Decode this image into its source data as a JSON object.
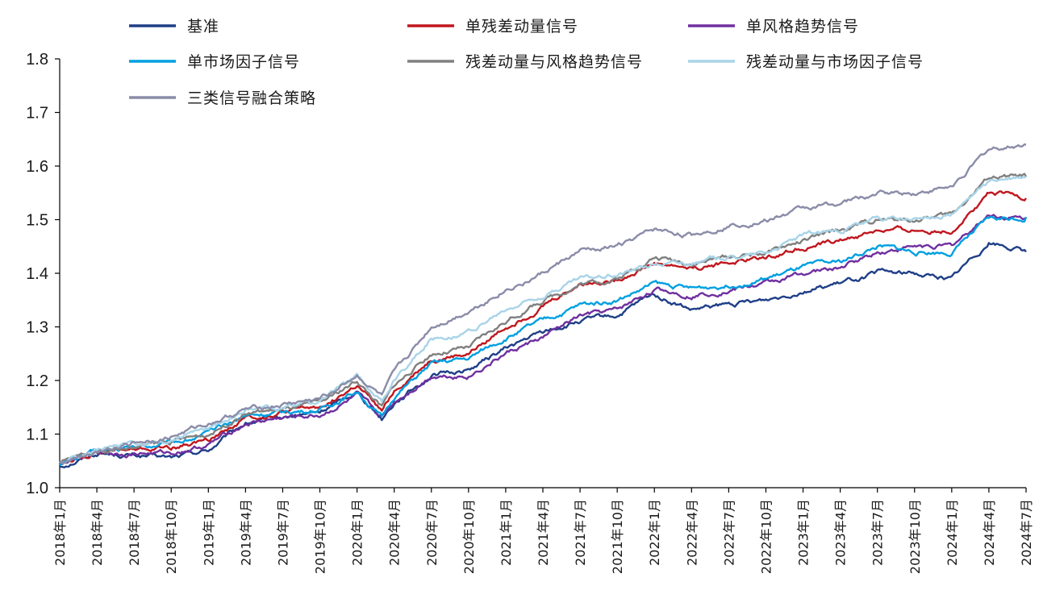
{
  "chart_data": {
    "type": "line",
    "title": "",
    "xlabel": "",
    "ylabel": "",
    "ylim": [
      1.0,
      1.8
    ],
    "yticks": [
      "1.0",
      "1.1",
      "1.2",
      "1.3",
      "1.4",
      "1.5",
      "1.6",
      "1.7",
      "1.8"
    ],
    "grid": false,
    "legend_position": "top",
    "x_tick_labels": [
      "2018年1月",
      "2018年4月",
      "2018年7月",
      "2018年10月",
      "2019年1月",
      "2019年4月",
      "2019年7月",
      "2019年10月",
      "2020年1月",
      "2020年4月",
      "2020年7月",
      "2020年10月",
      "2021年1月",
      "2021年4月",
      "2021年7月",
      "2021年10月",
      "2022年1月",
      "2022年4月",
      "2022年7月",
      "2022年10月",
      "2023年1月",
      "2023年4月",
      "2023年7月",
      "2023年10月",
      "2024年1月",
      "2024年4月",
      "2024年7月"
    ],
    "x": [
      "2018-01",
      "2018-04",
      "2018-07",
      "2018-10",
      "2019-01",
      "2019-04",
      "2019-07",
      "2019-10",
      "2020-01",
      "2020-03",
      "2020-04",
      "2020-07",
      "2020-10",
      "2021-01",
      "2021-04",
      "2021-07",
      "2021-10",
      "2022-01",
      "2022-04",
      "2022-07",
      "2022-10",
      "2023-01",
      "2023-04",
      "2023-07",
      "2023-10",
      "2024-01",
      "2024-04",
      "2024-07"
    ],
    "series": [
      {
        "name": "基准",
        "color": "#1f3f87",
        "values": [
          1.04,
          1.065,
          1.06,
          1.055,
          1.07,
          1.12,
          1.13,
          1.14,
          1.18,
          1.13,
          1.16,
          1.21,
          1.22,
          1.26,
          1.29,
          1.31,
          1.32,
          1.36,
          1.33,
          1.34,
          1.35,
          1.37,
          1.38,
          1.4,
          1.4,
          1.39,
          1.46,
          1.44
        ]
      },
      {
        "name": "单残差动量信号",
        "color": "#c0171f",
        "values": [
          1.045,
          1.068,
          1.07,
          1.075,
          1.09,
          1.13,
          1.14,
          1.15,
          1.19,
          1.14,
          1.18,
          1.24,
          1.25,
          1.3,
          1.34,
          1.38,
          1.39,
          1.42,
          1.41,
          1.42,
          1.43,
          1.45,
          1.46,
          1.48,
          1.48,
          1.48,
          1.55,
          1.54
        ]
      },
      {
        "name": "单风格趋势信号",
        "color": "#7030a0",
        "values": [
          1.045,
          1.065,
          1.065,
          1.065,
          1.08,
          1.12,
          1.13,
          1.135,
          1.17,
          1.13,
          1.16,
          1.21,
          1.21,
          1.25,
          1.28,
          1.32,
          1.33,
          1.37,
          1.36,
          1.37,
          1.38,
          1.4,
          1.41,
          1.44,
          1.45,
          1.45,
          1.51,
          1.5
        ]
      },
      {
        "name": "单市场因子信号",
        "color": "#00a0e0",
        "values": [
          1.045,
          1.068,
          1.075,
          1.085,
          1.1,
          1.135,
          1.14,
          1.145,
          1.18,
          1.13,
          1.17,
          1.23,
          1.24,
          1.28,
          1.31,
          1.34,
          1.35,
          1.38,
          1.37,
          1.38,
          1.39,
          1.41,
          1.42,
          1.45,
          1.44,
          1.44,
          1.5,
          1.505
        ]
      },
      {
        "name": "残差动量与风格趋势信号",
        "color": "#808080",
        "values": [
          1.045,
          1.07,
          1.075,
          1.085,
          1.1,
          1.14,
          1.145,
          1.155,
          1.2,
          1.15,
          1.19,
          1.25,
          1.26,
          1.31,
          1.35,
          1.38,
          1.39,
          1.43,
          1.42,
          1.43,
          1.44,
          1.46,
          1.48,
          1.5,
          1.5,
          1.51,
          1.58,
          1.58
        ]
      },
      {
        "name": "残差动量与市场因子信号",
        "color": "#a8d4e8",
        "values": [
          1.045,
          1.07,
          1.08,
          1.09,
          1.11,
          1.145,
          1.15,
          1.16,
          1.21,
          1.16,
          1.2,
          1.28,
          1.29,
          1.33,
          1.36,
          1.39,
          1.4,
          1.42,
          1.42,
          1.43,
          1.44,
          1.47,
          1.48,
          1.5,
          1.5,
          1.51,
          1.57,
          1.58
        ]
      },
      {
        "name": "三类信号融合策略",
        "color": "#8a8ca8",
        "values": [
          1.045,
          1.07,
          1.085,
          1.095,
          1.12,
          1.145,
          1.155,
          1.165,
          1.21,
          1.17,
          1.21,
          1.3,
          1.33,
          1.37,
          1.4,
          1.44,
          1.45,
          1.48,
          1.47,
          1.49,
          1.5,
          1.52,
          1.53,
          1.55,
          1.55,
          1.56,
          1.63,
          1.64
        ]
      }
    ]
  }
}
